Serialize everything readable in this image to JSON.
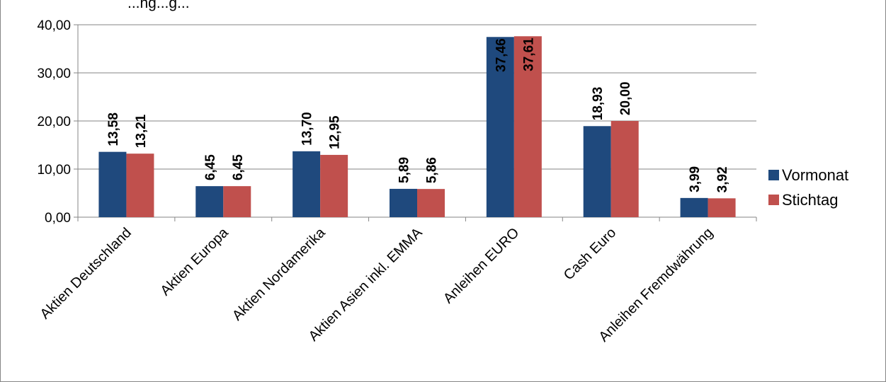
{
  "title": "...ng...g...",
  "colors": {
    "Vormonat": "#1F497D",
    "Stichtag": "#C0504D",
    "grid": "#868686",
    "border": "#868686"
  },
  "legend": {
    "position": "right",
    "items": [
      "Vormonat",
      "Stichtag"
    ]
  },
  "chart_data": {
    "type": "bar",
    "title": "",
    "xlabel": "",
    "ylabel": "",
    "ylim": [
      0,
      40
    ],
    "yticks": [
      "0,00",
      "10,00",
      "20,00",
      "30,00",
      "40,00"
    ],
    "grid": true,
    "categories": [
      "Aktien Deutschland",
      "Aktien Europa",
      "Aktien Nordamerika",
      "Aktien Asien inkl. EMMA",
      "Anleihen EURO",
      "Cash Euro",
      "Anleihen Fremdwährung"
    ],
    "series": [
      {
        "name": "Vormonat",
        "values": [
          13.58,
          6.45,
          13.7,
          5.89,
          37.46,
          18.93,
          3.99
        ],
        "labels": [
          "13,58",
          "6,45",
          "13,70",
          "5,89",
          "37,46",
          "18,93",
          "3,99"
        ]
      },
      {
        "name": "Stichtag",
        "values": [
          13.21,
          6.45,
          12.95,
          5.86,
          37.61,
          20.0,
          3.92
        ],
        "labels": [
          "13,21",
          "6,45",
          "12,95",
          "5,86",
          "37,61",
          "20,00",
          "3,92"
        ]
      }
    ]
  }
}
